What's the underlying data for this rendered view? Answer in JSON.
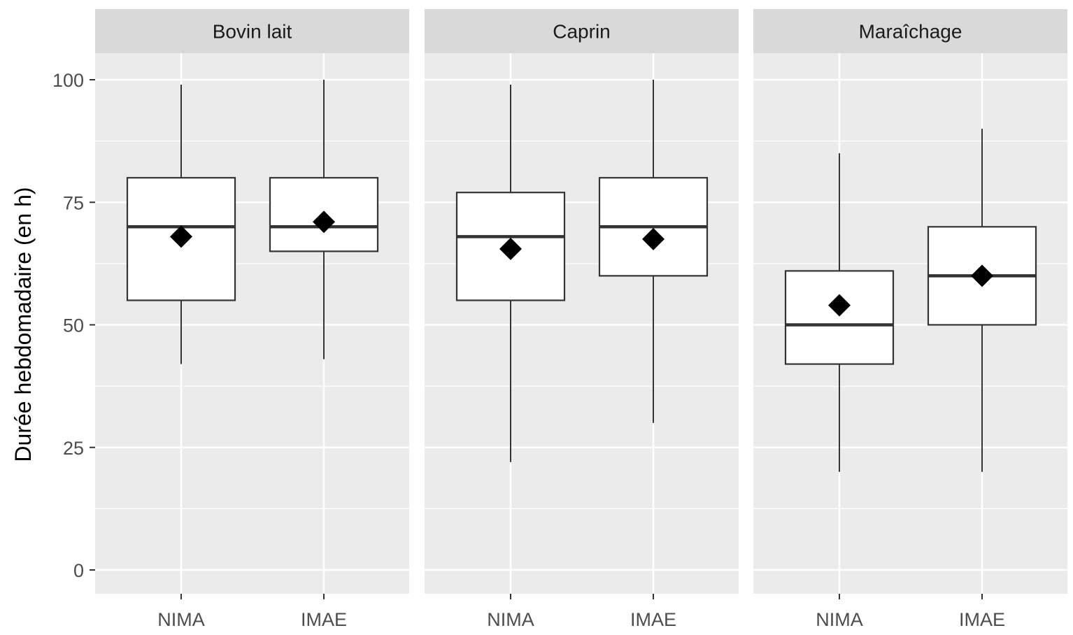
{
  "chart_data": {
    "type": "boxplot",
    "ylabel": "Durée hebdomadaire (en h)",
    "xlabel": "",
    "ylim": [
      0,
      100
    ],
    "yticks": [
      0,
      25,
      50,
      75,
      100
    ],
    "grid": true,
    "panels": [
      {
        "title": "Bovin lait",
        "groups": [
          {
            "label": "NIMA",
            "whisker_low": 42,
            "q1": 55,
            "median": 70,
            "q3": 80,
            "whisker_high": 99,
            "mean": 68
          },
          {
            "label": "IMAE",
            "whisker_low": 43,
            "q1": 65,
            "median": 70,
            "q3": 80,
            "whisker_high": 100,
            "mean": 71
          }
        ]
      },
      {
        "title": "Caprin",
        "groups": [
          {
            "label": "NIMA",
            "whisker_low": 22,
            "q1": 55,
            "median": 68,
            "q3": 77,
            "whisker_high": 99,
            "mean": 65.5
          },
          {
            "label": "IMAE",
            "whisker_low": 30,
            "q1": 60,
            "median": 70,
            "q3": 80,
            "whisker_high": 100,
            "mean": 67.5
          }
        ]
      },
      {
        "title": "Maraîchage",
        "groups": [
          {
            "label": "NIMA",
            "whisker_low": 20,
            "q1": 42,
            "median": 50,
            "q3": 61,
            "whisker_high": 85,
            "mean": 54
          },
          {
            "label": "IMAE",
            "whisker_low": 20,
            "q1": 50,
            "median": 60,
            "q3": 70,
            "whisker_high": 90,
            "mean": 60
          }
        ]
      }
    ],
    "colors": {
      "panel_bg": "#ebebeb",
      "strip_bg": "#d9d9d9",
      "grid": "#ffffff",
      "box_fill": "#ffffff",
      "box_line": "#333333",
      "mean_marker": "#000000",
      "axis_text": "#4d4d4d",
      "strip_text": "#1a1a1a"
    }
  }
}
